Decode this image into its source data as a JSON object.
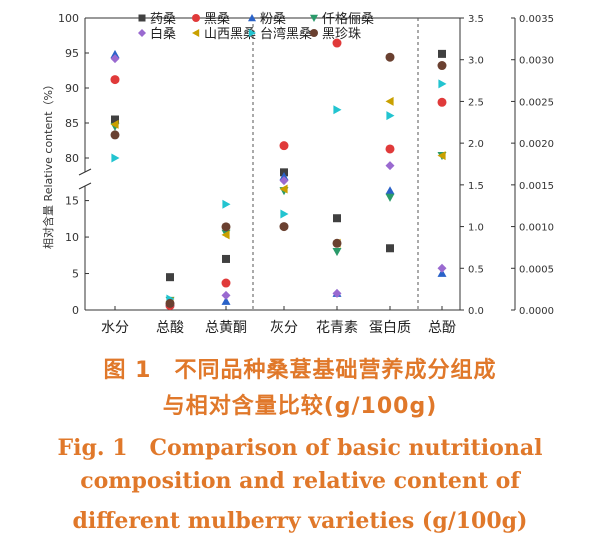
{
  "caption": {
    "cn_line1": "图 1　不同品种桑葚基础营养成分组成",
    "cn_line2": "与相对含量比较(g/100g)",
    "en_line1": "Fig. 1　Comparison of basic nutritional",
    "en_line2": "composition and relative content of",
    "en_line3": "different mulberry varieties (g/100g)"
  },
  "chart_data": {
    "type": "scatter",
    "ylabel": "相对含量 Relative content（%）",
    "categories": [
      "水分",
      "总酸",
      "总黄酮",
      "灰分",
      "花青素",
      "蛋白质",
      "总酚"
    ],
    "y_left_lower": {
      "ticks": [
        "0",
        "5",
        "10",
        "15"
      ],
      "range": [
        0,
        17
      ]
    },
    "y_left_upper": {
      "ticks": [
        "80",
        "85",
        "90",
        "95",
        "100"
      ],
      "range": [
        78,
        100
      ]
    },
    "y_right_1": {
      "ticks": [
        "0.0",
        "0.5",
        "1.0",
        "1.5",
        "2.0",
        "2.5",
        "3.0",
        "3.5"
      ],
      "range": [
        0,
        3.5
      ]
    },
    "y_right_2": {
      "ticks": [
        "0.0000",
        "0.0005",
        "0.0010",
        "0.0015",
        "0.0020",
        "0.0025",
        "0.0030",
        "0.0035"
      ],
      "range": [
        0,
        0.0035
      ]
    },
    "legend": "top",
    "series": [
      {
        "name": "药桑",
        "color": "#404040",
        "marker": "square",
        "values": [
          85.5,
          4.5,
          7.0,
          1.65,
          0.0011,
          0.74,
          3.07
        ]
      },
      {
        "name": "黑桑",
        "color": "#e03a3a",
        "marker": "circle",
        "values": [
          91.2,
          0.6,
          3.7,
          1.97,
          0.0032,
          1.93,
          2.49
        ]
      },
      {
        "name": "粉桑",
        "color": "#2a62c8",
        "marker": "triangle-up",
        "values": [
          94.8,
          1.0,
          1.2,
          1.6,
          0.0002,
          1.43,
          0.44
        ]
      },
      {
        "name": "仟格俪桑",
        "color": "#2a9a6a",
        "marker": "triangle-down",
        "values": [
          84.5,
          1.3,
          10.5,
          1.43,
          0.0007,
          1.35,
          1.85
        ]
      },
      {
        "name": "白桑",
        "color": "#9a6ad0",
        "marker": "diamond",
        "values": [
          94.2,
          1.0,
          2.0,
          1.55,
          0.0002,
          1.73,
          0.5
        ]
      },
      {
        "name": "山西黑桑",
        "color": "#c9a000",
        "marker": "triangle-left",
        "values": [
          84.8,
          1.2,
          10.3,
          1.45,
          0.0008,
          2.5,
          1.85
        ]
      },
      {
        "name": "台湾黑桑",
        "color": "#22c4d0",
        "marker": "triangle-right",
        "values": [
          80.0,
          1.5,
          14.5,
          1.15,
          0.0024,
          2.33,
          2.71
        ]
      },
      {
        "name": "黑珍珠",
        "color": "#6a4030",
        "marker": "circle",
        "values": [
          83.3,
          0.9,
          11.4,
          1.0,
          0.0008,
          3.03,
          2.93
        ]
      }
    ]
  }
}
